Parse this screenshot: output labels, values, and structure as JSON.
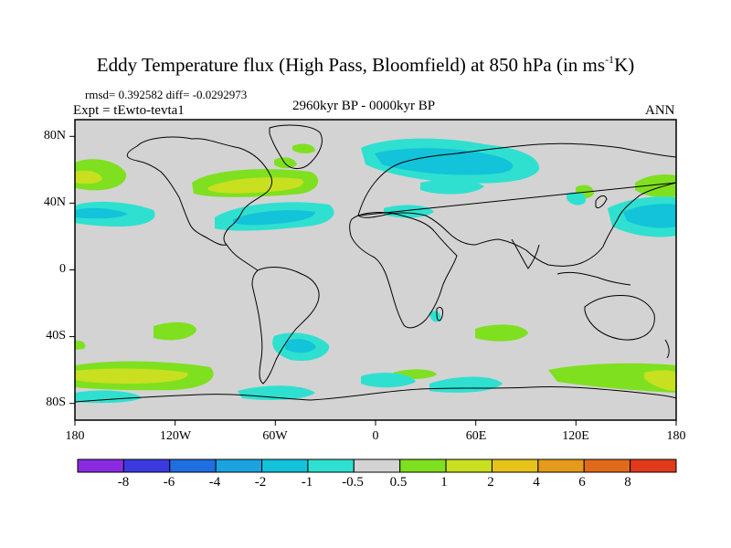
{
  "title": {
    "main": "Eddy Temperature flux (High Pass, Bloomfield) at 850 hPa (in ms",
    "superscript": "-1",
    "end": "K)"
  },
  "stats": "rmsd= 0.392582 diff= -0.0292973",
  "experiment": "Expt = tEwto-tevta1",
  "period": "2960kyr BP - 0000kyr BP",
  "season": "ANN",
  "lat_labels": [
    "80N",
    "40N",
    "0",
    "40S",
    "80S"
  ],
  "lon_labels": [
    "180",
    "120W",
    "60W",
    "0",
    "60E",
    "120E",
    "180"
  ],
  "colorbar": {
    "levels": [
      "-8",
      "-6",
      "-4",
      "-2",
      "-1",
      "-0.5",
      "0.5",
      "1",
      "2",
      "4",
      "6",
      "8"
    ],
    "colors": [
      "#8a2be2",
      "#3a3ae0",
      "#1e6fe0",
      "#1aa3e0",
      "#12c3da",
      "#2fe0d0",
      "#d3d3d3",
      "#7fe020",
      "#c8e020",
      "#e6c31a",
      "#e49a1a",
      "#e06a1a",
      "#e03a1a"
    ]
  },
  "colors": {
    "land_bg": "#d3d3d3",
    "pos_light": "#7fe020",
    "pos_mid": "#c8e020",
    "neg_light": "#2fe0d0",
    "neg_mid": "#12c3da",
    "coast": "#000000"
  }
}
